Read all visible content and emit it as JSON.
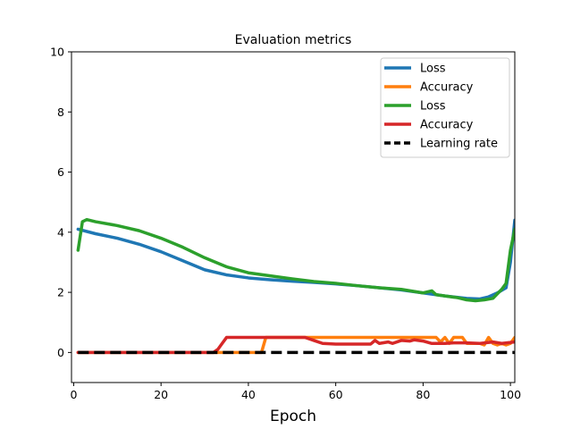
{
  "chart_data": {
    "type": "line",
    "title": "Evaluation metrics",
    "xlabel": "Epoch",
    "ylabel": "",
    "xlim": [
      -0.5,
      101
    ],
    "ylim": [
      -1,
      10
    ],
    "xticks": [
      0,
      20,
      40,
      60,
      80,
      100
    ],
    "yticks": [
      0,
      2,
      4,
      6,
      8,
      10
    ],
    "xtick_labels": [
      "0",
      "20",
      "40",
      "60",
      "80",
      "100"
    ],
    "ytick_labels": [
      "0",
      "2",
      "4",
      "6",
      "8",
      "10"
    ],
    "grid": false,
    "legend_position": "top-right",
    "series": [
      {
        "name": "Loss",
        "color": "#1f77b4",
        "style": "solid",
        "points": [
          [
            1,
            4.1
          ],
          [
            5,
            3.95
          ],
          [
            10,
            3.8
          ],
          [
            15,
            3.6
          ],
          [
            20,
            3.35
          ],
          [
            25,
            3.05
          ],
          [
            30,
            2.75
          ],
          [
            35,
            2.58
          ],
          [
            40,
            2.48
          ],
          [
            45,
            2.42
          ],
          [
            50,
            2.37
          ],
          [
            55,
            2.33
          ],
          [
            60,
            2.28
          ],
          [
            65,
            2.22
          ],
          [
            70,
            2.15
          ],
          [
            75,
            2.08
          ],
          [
            80,
            1.98
          ],
          [
            85,
            1.88
          ],
          [
            90,
            1.8
          ],
          [
            93,
            1.78
          ],
          [
            95,
            1.85
          ],
          [
            97,
            1.98
          ],
          [
            99,
            2.15
          ],
          [
            100,
            3.0
          ],
          [
            101,
            4.4
          ]
        ]
      },
      {
        "name": "Accuracy",
        "color": "#ff7f0e",
        "style": "solid",
        "points": [
          [
            1,
            0.0
          ],
          [
            42,
            0.0
          ],
          [
            43,
            0.0
          ],
          [
            44,
            0.5
          ],
          [
            50,
            0.5
          ],
          [
            60,
            0.5
          ],
          [
            70,
            0.5
          ],
          [
            80,
            0.5
          ],
          [
            83,
            0.5
          ],
          [
            84,
            0.35
          ],
          [
            85,
            0.5
          ],
          [
            86,
            0.3
          ],
          [
            87,
            0.5
          ],
          [
            89,
            0.5
          ],
          [
            90,
            0.3
          ],
          [
            93,
            0.3
          ],
          [
            94,
            0.25
          ],
          [
            95,
            0.5
          ],
          [
            96,
            0.3
          ],
          [
            97,
            0.25
          ],
          [
            98,
            0.3
          ],
          [
            99,
            0.25
          ],
          [
            100,
            0.3
          ],
          [
            101,
            0.5
          ]
        ]
      },
      {
        "name": "Loss",
        "color": "#2ca02c",
        "style": "solid",
        "points": [
          [
            1,
            3.4
          ],
          [
            2,
            4.35
          ],
          [
            3,
            4.42
          ],
          [
            5,
            4.35
          ],
          [
            10,
            4.22
          ],
          [
            15,
            4.05
          ],
          [
            20,
            3.8
          ],
          [
            25,
            3.5
          ],
          [
            30,
            3.15
          ],
          [
            35,
            2.85
          ],
          [
            40,
            2.65
          ],
          [
            45,
            2.55
          ],
          [
            50,
            2.45
          ],
          [
            55,
            2.36
          ],
          [
            60,
            2.3
          ],
          [
            65,
            2.22
          ],
          [
            70,
            2.15
          ],
          [
            75,
            2.1
          ],
          [
            80,
            1.98
          ],
          [
            82,
            2.05
          ],
          [
            83,
            1.92
          ],
          [
            85,
            1.88
          ],
          [
            88,
            1.82
          ],
          [
            90,
            1.75
          ],
          [
            92,
            1.72
          ],
          [
            94,
            1.75
          ],
          [
            96,
            1.8
          ],
          [
            98,
            2.1
          ],
          [
            99,
            2.3
          ],
          [
            100,
            3.4
          ],
          [
            101,
            4.1
          ]
        ]
      },
      {
        "name": "Accuracy",
        "color": "#d62728",
        "style": "solid",
        "points": [
          [
            1,
            0.0
          ],
          [
            32,
            0.0
          ],
          [
            33,
            0.1
          ],
          [
            34,
            0.3
          ],
          [
            35,
            0.5
          ],
          [
            40,
            0.5
          ],
          [
            45,
            0.5
          ],
          [
            50,
            0.5
          ],
          [
            53,
            0.5
          ],
          [
            55,
            0.4
          ],
          [
            57,
            0.3
          ],
          [
            60,
            0.28
          ],
          [
            65,
            0.28
          ],
          [
            68,
            0.28
          ],
          [
            69,
            0.4
          ],
          [
            70,
            0.3
          ],
          [
            72,
            0.35
          ],
          [
            73,
            0.3
          ],
          [
            75,
            0.4
          ],
          [
            77,
            0.38
          ],
          [
            78,
            0.42
          ],
          [
            80,
            0.38
          ],
          [
            82,
            0.3
          ],
          [
            85,
            0.3
          ],
          [
            87,
            0.32
          ],
          [
            90,
            0.32
          ],
          [
            93,
            0.3
          ],
          [
            96,
            0.35
          ],
          [
            98,
            0.3
          ],
          [
            101,
            0.35
          ]
        ]
      },
      {
        "name": "Learning rate",
        "color": "#000000",
        "style": "dashed",
        "points": [
          [
            1,
            0.0
          ],
          [
            101,
            0.0
          ]
        ]
      }
    ]
  }
}
